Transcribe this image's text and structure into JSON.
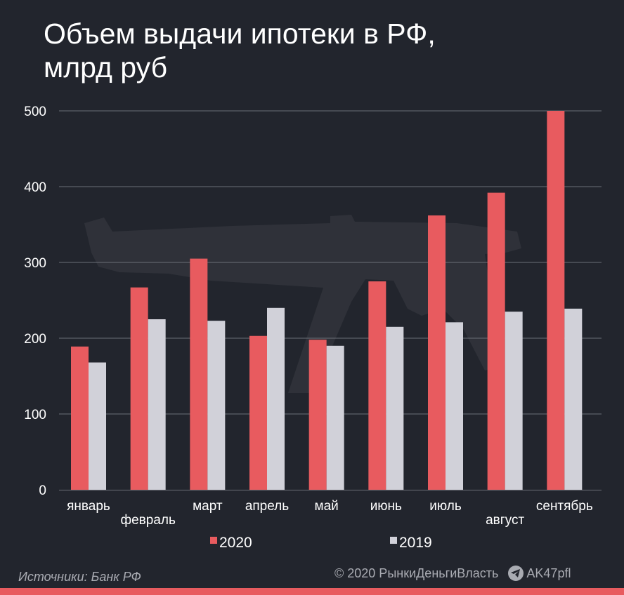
{
  "title": {
    "line1": "Объем выдачи ипотеки в РФ,",
    "line2": "млрд руб"
  },
  "colors": {
    "background": "#22252d",
    "series_2020": "#e85b5f",
    "series_2019": "#d1d1d9",
    "gridline": "#6b6e77",
    "text": "#ffffff",
    "muted_text": "#a9abb2"
  },
  "chart_data": {
    "type": "bar",
    "categories": [
      "январь",
      "февраль",
      "март",
      "апрель",
      "май",
      "июнь",
      "июль",
      "август",
      "сентябрь"
    ],
    "series": [
      {
        "name": "2020",
        "values": [
          189,
          267,
          305,
          203,
          198,
          275,
          362,
          392,
          500
        ]
      },
      {
        "name": "2019",
        "values": [
          168,
          225,
          223,
          240,
          190,
          215,
          221,
          235,
          239
        ]
      }
    ],
    "ylim": [
      0,
      500
    ],
    "yticks": [
      0,
      100,
      200,
      300,
      400,
      500
    ],
    "grid": true,
    "legend_position": "bottom-center"
  },
  "footer": {
    "source": "Источники: Банк РФ",
    "copyright": "© 2020  РынкиДеньгиВласть",
    "telegram_icon": "telegram-icon",
    "handle": "AK47pfl"
  }
}
